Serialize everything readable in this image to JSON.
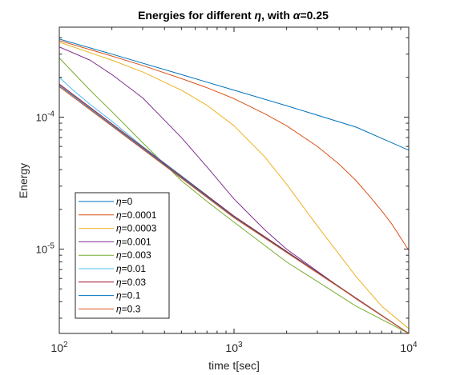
{
  "chart_data": {
    "type": "line",
    "title": "Energies for different η, with α=0.25",
    "title_parts": {
      "pre": "Energies for different ",
      "eta": "η",
      "mid": ", with ",
      "alpha": "α",
      "post": "=0.25"
    },
    "xlabel": "time t[sec]",
    "ylabel": "Energy",
    "xscale": "log",
    "yscale": "log",
    "xlim": [
      100,
      10000
    ],
    "ylim": [
      2.3e-06,
      0.00048
    ],
    "grid": false,
    "legend_position": "bottom-left",
    "x_ticks": [
      {
        "value": 100,
        "base": "10",
        "exp": "2"
      },
      {
        "value": 1000,
        "base": "10",
        "exp": "3"
      },
      {
        "value": 10000,
        "base": "10",
        "exp": "4"
      }
    ],
    "y_ticks": [
      {
        "value": 0.0001,
        "base": "10",
        "exp": "-4"
      },
      {
        "value": 1e-05,
        "base": "10",
        "exp": "-5"
      }
    ],
    "series": [
      {
        "name": "η=0",
        "eta_symbol": "η",
        "eta_value": "=0",
        "color": "#0072BD",
        "x": [
          100,
          200,
          500,
          1000,
          2000,
          5000,
          10000
        ],
        "y": [
          0.00039,
          0.0003,
          0.00021,
          0.00016,
          0.000122,
          8.4e-05,
          5.62e-05
        ]
      },
      {
        "name": "η=0.0001",
        "eta_symbol": "η",
        "eta_value": "=0.0001",
        "color": "#D95319",
        "x": [
          100,
          200,
          300,
          500,
          700,
          1000,
          1500,
          2000,
          3000,
          4000,
          5000,
          6000,
          7000,
          8000,
          10000
        ],
        "y": [
          0.00038,
          0.00029,
          0.000246,
          0.000196,
          0.000167,
          0.000138,
          0.000106,
          8.6e-05,
          6e-05,
          4.4e-05,
          3.3e-05,
          2.5e-05,
          1.95e-05,
          1.55e-05,
          9.8e-06
        ]
      },
      {
        "name": "η=0.0003",
        "eta_symbol": "η",
        "eta_value": "=0.0003",
        "color": "#EDB120",
        "x": [
          100,
          200,
          300,
          500,
          700,
          1000,
          1500,
          2000,
          3000,
          5000,
          7000,
          10000
        ],
        "y": [
          0.00037,
          0.00027,
          0.00022,
          0.00016,
          0.000123,
          8.6e-05,
          5e-05,
          3.1e-05,
          1.5e-05,
          6.2e-06,
          3.7e-06,
          2.5e-06
        ]
      },
      {
        "name": "η=0.001",
        "eta_symbol": "η",
        "eta_value": "=0.001",
        "color": "#7E2F8E",
        "x": [
          100,
          150,
          200,
          300,
          500,
          700,
          1000,
          1500,
          2000,
          3000,
          5000,
          10000
        ],
        "y": [
          0.00034,
          0.00027,
          0.00021,
          0.00014,
          7e-05,
          4.2e-05,
          2.4e-05,
          1.4e-05,
          1e-05,
          6.8e-06,
          4.2e-06,
          2.3e-06
        ]
      },
      {
        "name": "η=0.003",
        "eta_symbol": "η",
        "eta_value": "=0.003",
        "color": "#77AC30",
        "x": [
          100,
          150,
          200,
          300,
          500,
          700,
          1000,
          2000,
          5000,
          10000
        ],
        "y": [
          0.00028,
          0.00016,
          0.00011,
          6.4e-05,
          3.3e-05,
          2.3e-05,
          1.6e-05,
          8e-06,
          3.7e-06,
          2.3e-06
        ]
      },
      {
        "name": "η=0.01",
        "eta_symbol": "η",
        "eta_value": "=0.01",
        "color": "#4DBEEE",
        "x": [
          100,
          120,
          150,
          200,
          300,
          500,
          1000,
          10000
        ],
        "y": [
          0.0002,
          0.00016,
          0.000125,
          9.3e-05,
          6e-05,
          3.6e-05,
          1.78e-05,
          2.3e-06
        ]
      },
      {
        "name": "η=0.03",
        "eta_symbol": "η",
        "eta_value": "=0.03",
        "color": "#A2142F",
        "x": [
          100,
          1000,
          10000
        ],
        "y": [
          0.000178,
          1.78e-05,
          2.3e-06
        ]
      },
      {
        "name": "η=0.1",
        "eta_symbol": "η",
        "eta_value": "=0.1",
        "color": "#0072BD",
        "x": [
          100,
          1000,
          10000
        ],
        "y": [
          0.000174,
          1.75e-05,
          2.3e-06
        ]
      },
      {
        "name": "η=0.3",
        "eta_symbol": "η",
        "eta_value": "=0.3",
        "color": "#D95319",
        "x": [
          100,
          1000,
          10000
        ],
        "y": [
          0.00017,
          1.73e-05,
          2.3e-06
        ]
      }
    ]
  }
}
